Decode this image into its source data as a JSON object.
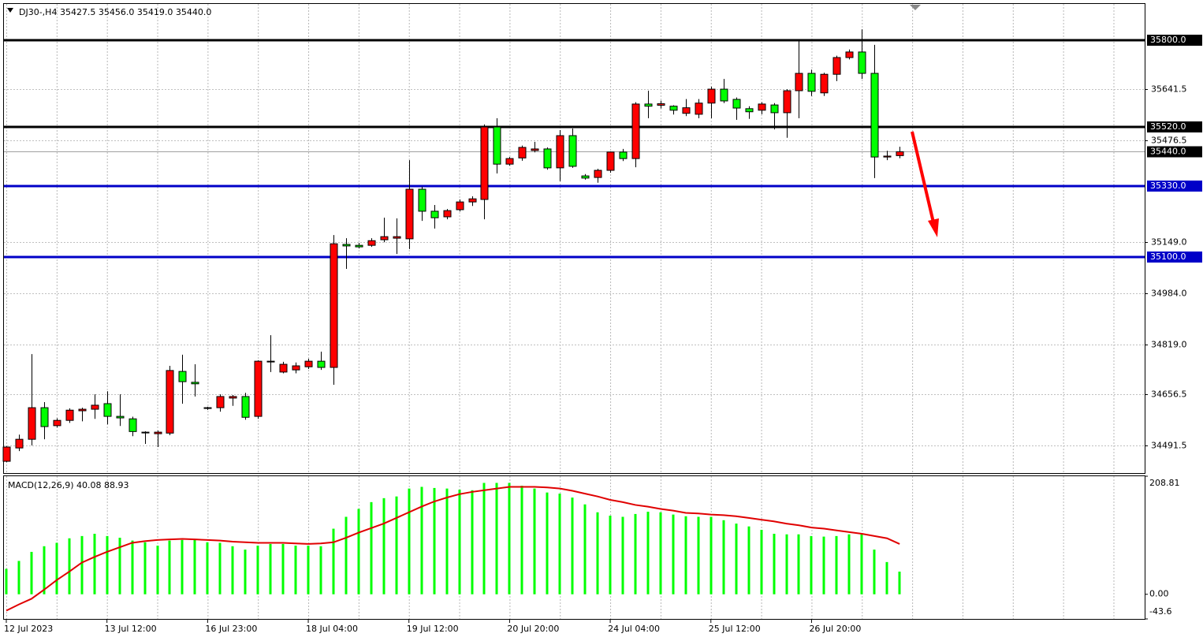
{
  "chart_data": [
    {
      "type": "candlestick",
      "title": "DJ30-,H4  35427.5 35456.0 35419.0 35440.0",
      "categories": [
        "12 Jul 2023",
        null,
        null,
        null,
        null,
        null,
        null,
        null,
        "13 Jul 12:00",
        null,
        null,
        null,
        null,
        null,
        null,
        null,
        "16 Jul 23:00",
        null,
        null,
        null,
        null,
        null,
        null,
        null,
        "18 Jul 04:00",
        null,
        null,
        null,
        null,
        null,
        null,
        null,
        "19 Jul 12:00",
        null,
        null,
        null,
        null,
        null,
        null,
        null,
        "20 Jul 20:00",
        null,
        null,
        null,
        null,
        null,
        null,
        null,
        "24 Jul 04:00",
        null,
        null,
        null,
        null,
        null,
        null,
        null,
        "25 Jul 12:00",
        null,
        null,
        null,
        null,
        null,
        null,
        null,
        "26 Jul 20:00",
        null,
        null,
        null,
        null,
        null,
        null,
        null
      ],
      "open": [
        34441,
        34484,
        34512,
        34614,
        34556,
        34573,
        34604,
        34609,
        34627,
        34586,
        34578,
        34535,
        34530,
        34532,
        34731,
        34696,
        34614,
        34614,
        34645,
        34650,
        34586,
        34764,
        34729,
        34736,
        34746,
        34764,
        34744,
        35141,
        35138,
        35138,
        35156,
        35161,
        35159,
        35319,
        35248,
        35230,
        35253,
        35278,
        35286,
        35520,
        35400,
        35420,
        35444,
        35449,
        35388,
        35492,
        35362,
        35357,
        35380,
        35439,
        35418,
        35594,
        35590,
        35587,
        35564,
        35561,
        35597,
        35642,
        35609,
        35579,
        35574,
        35591,
        35566,
        35637,
        35693,
        35630,
        35690,
        35744,
        35762,
        35693,
        35423,
        35427.5
      ],
      "high": [
        34490,
        34527,
        34787,
        34632,
        34580,
        34612,
        34614,
        34657,
        34667,
        34657,
        34585,
        34538,
        34540,
        34749,
        34785,
        34754,
        34617,
        34657,
        34655,
        34662,
        34767,
        34848,
        34762,
        34760,
        34772,
        34795,
        35171,
        35161,
        35146,
        35161,
        35227,
        35225,
        35413,
        35327,
        35268,
        35255,
        35286,
        35296,
        35528,
        35548,
        35423,
        35460,
        35472,
        35454,
        35510,
        35515,
        35368,
        35385,
        35441,
        35449,
        35600,
        35637,
        35605,
        35590,
        35610,
        35610,
        35650,
        35675,
        35615,
        35587,
        35600,
        35597,
        35642,
        35800,
        35705,
        35695,
        35750,
        35770,
        35835,
        35785,
        35443,
        35456
      ],
      "low": [
        34438,
        34474,
        34492,
        34512,
        34550,
        34565,
        34570,
        34578,
        34560,
        34555,
        34522,
        34497,
        34487,
        34525,
        34627,
        34650,
        34607,
        34601,
        34620,
        34575,
        34578,
        34729,
        34725,
        34725,
        34739,
        34736,
        34688,
        35062,
        35128,
        35133,
        35148,
        35110,
        35126,
        35217,
        35192,
        35222,
        35247,
        35265,
        35222,
        35370,
        35395,
        35411,
        35438,
        35382,
        35345,
        35388,
        35350,
        35340,
        35372,
        35410,
        35390,
        35548,
        35580,
        35560,
        35555,
        35548,
        35548,
        35597,
        35543,
        35546,
        35561,
        35512,
        35485,
        35548,
        35620,
        35620,
        35668,
        35738,
        35675,
        35355,
        35413,
        35419
      ],
      "close": [
        34487,
        34512,
        34614,
        34553,
        34573,
        34606,
        34609,
        34622,
        34586,
        34581,
        34537,
        34535,
        34535,
        34734,
        34698,
        34691,
        34614,
        34650,
        34650,
        34583,
        34764,
        34762,
        34754,
        34749,
        34764,
        34744,
        35143,
        35136,
        35133,
        35153,
        35166,
        35166,
        35319,
        35248,
        35227,
        35250,
        35278,
        35288,
        35520,
        35400,
        35418,
        35454,
        35449,
        35388,
        35492,
        35393,
        35355,
        35380,
        35439,
        35418,
        35594,
        35587,
        35595,
        35574,
        35582,
        35597,
        35642,
        35604,
        35581,
        35569,
        35594,
        35566,
        35637,
        35693,
        35635,
        35690,
        35744,
        35762,
        35693,
        35423,
        35426,
        35440
      ],
      "up_color": "#ff0000",
      "down_color": "#00ff00",
      "ylim": [
        34403,
        35917
      ],
      "yticks": [
        35641.5,
        35476.5,
        {
          "value": 35149,
          "label": "35149.0"
        },
        {
          "value": 34984,
          "label": "34984.0"
        },
        {
          "value": 34819,
          "label": "34819.0"
        },
        34656.5,
        34491.5
      ],
      "grid": true,
      "levels": [
        {
          "value": 35800,
          "label": "35800.0",
          "color": "#000000"
        },
        {
          "value": 35520,
          "label": "35520.0",
          "color": "#000000"
        },
        {
          "value": 35330,
          "label": "35330.0",
          "color": "#0000c8"
        },
        {
          "value": 35100,
          "label": "35100.0",
          "color": "#0000c8"
        }
      ],
      "last_price": {
        "value": 35440,
        "label": "35440.0"
      }
    },
    {
      "type": "macd",
      "title": "MACD(12,26,9) 40.08 88.93",
      "macd_values": [
        45,
        59,
        75,
        85,
        91,
        99,
        103,
        107,
        103,
        100,
        95,
        92,
        86,
        95,
        96,
        96,
        92,
        91,
        85,
        79,
        86,
        89,
        89,
        86,
        86,
        85,
        116,
        137,
        151,
        163,
        170,
        173,
        187,
        190,
        188,
        187,
        185,
        184,
        197,
        197,
        197,
        192,
        187,
        180,
        178,
        171,
        159,
        145,
        139,
        137,
        142,
        146,
        145,
        141,
        138,
        137,
        137,
        131,
        125,
        120,
        114,
        107,
        106,
        106,
        103,
        102,
        103,
        106,
        106,
        79,
        57,
        40.08
      ],
      "signal_values": [
        -29,
        -18,
        -8,
        8,
        25,
        40,
        56,
        66,
        75,
        83,
        91,
        94,
        96,
        97,
        98,
        97,
        96,
        95,
        93,
        92,
        91,
        91,
        91,
        90,
        89,
        90,
        92,
        100,
        109,
        117,
        125,
        135,
        145,
        155,
        164,
        171,
        177,
        181,
        184,
        187,
        190,
        190,
        190,
        189,
        187,
        183,
        178,
        173,
        167,
        163,
        158,
        155,
        151,
        148,
        144,
        143,
        141,
        140,
        138,
        135,
        132,
        129,
        125,
        122,
        118,
        116,
        113,
        110,
        107,
        103,
        99,
        88.93
      ],
      "bar_color": "#00ff00",
      "line_color": "#e00000",
      "ylim": [
        -43.6,
        208.81
      ],
      "yticks": [
        208.81,
        {
          "value": 0,
          "label": "0.00"
        },
        -43.6
      ]
    }
  ]
}
